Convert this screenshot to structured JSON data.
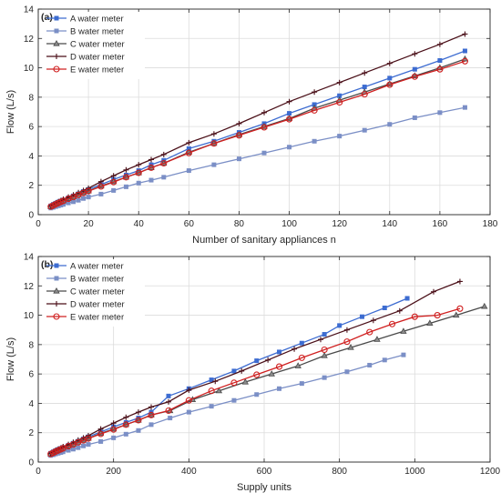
{
  "chart_data": [
    {
      "type": "line",
      "panel_label": "(a)",
      "xlabel": "Number of sanitary appliances n",
      "ylabel": "Flow (L/s)",
      "xlim": [
        0,
        180
      ],
      "ylim": [
        0,
        14
      ],
      "xticks": [
        0,
        20,
        40,
        60,
        80,
        100,
        120,
        140,
        160,
        180
      ],
      "yticks": [
        0,
        2,
        4,
        6,
        8,
        10,
        12,
        14
      ],
      "legend_position": "top-left",
      "grid": true,
      "series": [
        {
          "name": "A water meter",
          "color": "#3D6CD1",
          "marker": "square",
          "x": [
            5,
            6,
            7,
            8,
            9,
            10,
            12,
            14,
            16,
            18,
            20,
            25,
            30,
            35,
            40,
            45,
            50,
            60,
            70,
            80,
            90,
            100,
            110,
            120,
            130,
            140,
            150,
            160,
            170
          ],
          "y": [
            0.6,
            0.7,
            0.78,
            0.86,
            0.93,
            1.0,
            1.15,
            1.28,
            1.42,
            1.58,
            1.72,
            2.05,
            2.4,
            2.7,
            3.0,
            3.4,
            3.7,
            4.5,
            5.0,
            5.6,
            6.2,
            6.9,
            7.5,
            8.1,
            8.7,
            9.3,
            9.9,
            10.5,
            11.15
          ]
        },
        {
          "name": "B water meter",
          "color": "#7B8FC6",
          "marker": "square",
          "x": [
            5,
            6,
            7,
            8,
            9,
            10,
            12,
            14,
            16,
            18,
            20,
            25,
            30,
            35,
            40,
            45,
            50,
            60,
            70,
            80,
            90,
            100,
            110,
            120,
            130,
            140,
            150,
            160,
            170
          ],
          "y": [
            0.45,
            0.5,
            0.55,
            0.6,
            0.65,
            0.7,
            0.8,
            0.88,
            0.98,
            1.1,
            1.2,
            1.4,
            1.65,
            1.9,
            2.15,
            2.35,
            2.55,
            3.0,
            3.4,
            3.8,
            4.2,
            4.6,
            5.0,
            5.35,
            5.75,
            6.15,
            6.6,
            6.95,
            7.3
          ]
        },
        {
          "name": "C water meter",
          "color": "#4A4A4A",
          "marker": "triangle",
          "x": [
            5,
            6,
            7,
            8,
            9,
            10,
            12,
            14,
            16,
            18,
            20,
            25,
            30,
            35,
            40,
            45,
            50,
            60,
            70,
            80,
            90,
            100,
            110,
            120,
            130,
            140,
            150,
            160,
            170
          ],
          "y": [
            0.55,
            0.64,
            0.72,
            0.8,
            0.88,
            0.95,
            1.1,
            1.22,
            1.36,
            1.5,
            1.62,
            1.95,
            2.25,
            2.55,
            2.85,
            3.2,
            3.5,
            4.25,
            4.85,
            5.45,
            6.0,
            6.55,
            7.25,
            7.8,
            8.35,
            8.9,
            9.45,
            10.0,
            10.6
          ]
        },
        {
          "name": "D water meter",
          "color": "#4A0F18",
          "marker": "plus",
          "x": [
            5,
            6,
            7,
            8,
            9,
            10,
            12,
            14,
            16,
            18,
            20,
            25,
            30,
            35,
            40,
            45,
            50,
            60,
            70,
            80,
            90,
            100,
            110,
            120,
            130,
            140,
            150,
            160,
            170
          ],
          "y": [
            0.6,
            0.7,
            0.8,
            0.88,
            0.96,
            1.05,
            1.2,
            1.35,
            1.5,
            1.65,
            1.8,
            2.25,
            2.65,
            3.05,
            3.4,
            3.75,
            4.1,
            4.9,
            5.5,
            6.2,
            6.95,
            7.7,
            8.35,
            9.0,
            9.65,
            10.3,
            10.95,
            11.6,
            12.3
          ]
        },
        {
          "name": "E water meter",
          "color": "#D02020",
          "marker": "circle",
          "x": [
            5,
            6,
            7,
            8,
            9,
            10,
            12,
            14,
            16,
            18,
            20,
            25,
            30,
            35,
            40,
            45,
            50,
            60,
            70,
            80,
            90,
            100,
            110,
            120,
            130,
            140,
            150,
            160,
            170
          ],
          "y": [
            0.55,
            0.63,
            0.71,
            0.79,
            0.87,
            0.94,
            1.08,
            1.2,
            1.34,
            1.48,
            1.6,
            1.92,
            2.22,
            2.55,
            2.85,
            3.2,
            3.5,
            4.2,
            4.85,
            5.4,
            5.95,
            6.5,
            7.1,
            7.65,
            8.2,
            8.85,
            9.4,
            9.9,
            10.45
          ]
        }
      ]
    },
    {
      "type": "line",
      "panel_label": "(b)",
      "xlabel": "Supply units",
      "ylabel": "Flow (L/s)",
      "xlim": [
        0,
        1200
      ],
      "ylim": [
        0,
        14
      ],
      "xticks": [
        0,
        200,
        400,
        600,
        800,
        1000,
        1200
      ],
      "yticks": [
        0,
        2,
        4,
        6,
        8,
        10,
        12,
        14
      ],
      "legend_position": "top-left",
      "grid": true,
      "series": [
        {
          "name": "A water meter",
          "color": "#3D6CD1",
          "marker": "square",
          "x": [
            33,
            40,
            46,
            53,
            60,
            66,
            80,
            93,
            106,
            120,
            133,
            166,
            200,
            233,
            266,
            300,
            346,
            400,
            460,
            520,
            580,
            640,
            700,
            760,
            800,
            860,
            920,
            980
          ],
          "y": [
            0.6,
            0.7,
            0.78,
            0.86,
            0.93,
            1.0,
            1.15,
            1.28,
            1.42,
            1.58,
            1.72,
            2.05,
            2.4,
            2.7,
            3.0,
            3.4,
            4.5,
            5.0,
            5.6,
            6.2,
            6.9,
            7.5,
            8.1,
            8.7,
            9.3,
            9.9,
            10.5,
            11.15
          ]
        },
        {
          "name": "B water meter",
          "color": "#7B8FC6",
          "marker": "square",
          "x": [
            33,
            40,
            46,
            53,
            60,
            66,
            80,
            93,
            106,
            120,
            133,
            166,
            200,
            233,
            266,
            300,
            350,
            400,
            460,
            520,
            580,
            640,
            700,
            760,
            820,
            880,
            920,
            970
          ],
          "y": [
            0.45,
            0.5,
            0.55,
            0.6,
            0.65,
            0.7,
            0.8,
            0.88,
            0.98,
            1.1,
            1.2,
            1.4,
            1.65,
            1.9,
            2.15,
            2.55,
            3.0,
            3.4,
            3.8,
            4.2,
            4.6,
            5.0,
            5.35,
            5.75,
            6.15,
            6.6,
            6.95,
            7.3
          ]
        },
        {
          "name": "C water meter",
          "color": "#4A4A4A",
          "marker": "triangle",
          "x": [
            33,
            40,
            46,
            53,
            60,
            66,
            80,
            93,
            106,
            120,
            133,
            166,
            200,
            233,
            266,
            300,
            350,
            410,
            480,
            550,
            620,
            690,
            760,
            830,
            900,
            970,
            1040,
            1110,
            1185
          ],
          "y": [
            0.55,
            0.64,
            0.72,
            0.8,
            0.88,
            0.95,
            1.1,
            1.22,
            1.36,
            1.5,
            1.62,
            1.95,
            2.25,
            2.55,
            2.85,
            3.2,
            3.5,
            4.25,
            4.85,
            5.45,
            6.0,
            6.55,
            7.25,
            7.8,
            8.35,
            8.9,
            9.45,
            10.0,
            10.6
          ]
        },
        {
          "name": "D water meter",
          "color": "#4A0F18",
          "marker": "plus",
          "x": [
            33,
            40,
            46,
            53,
            60,
            66,
            80,
            93,
            106,
            120,
            133,
            166,
            200,
            233,
            266,
            300,
            346,
            400,
            470,
            540,
            610,
            680,
            750,
            820,
            890,
            960,
            1050,
            1120
          ],
          "y": [
            0.6,
            0.7,
            0.8,
            0.88,
            0.96,
            1.05,
            1.2,
            1.35,
            1.5,
            1.65,
            1.8,
            2.25,
            2.65,
            3.05,
            3.4,
            3.75,
            4.1,
            4.9,
            5.5,
            6.2,
            6.95,
            7.7,
            8.35,
            9.0,
            9.65,
            10.3,
            11.6,
            12.3
          ]
        },
        {
          "name": "E water meter",
          "color": "#D02020",
          "marker": "circle",
          "x": [
            33,
            40,
            46,
            53,
            60,
            66,
            80,
            93,
            106,
            120,
            133,
            166,
            200,
            233,
            266,
            300,
            346,
            400,
            460,
            520,
            580,
            640,
            700,
            760,
            820,
            880,
            940,
            1000,
            1060,
            1120
          ],
          "y": [
            0.55,
            0.63,
            0.71,
            0.79,
            0.87,
            0.94,
            1.08,
            1.2,
            1.34,
            1.48,
            1.6,
            1.92,
            2.22,
            2.55,
            2.85,
            3.2,
            3.5,
            4.2,
            4.85,
            5.4,
            5.95,
            6.5,
            7.1,
            7.65,
            8.2,
            8.85,
            9.4,
            9.9,
            10.0,
            10.45
          ]
        }
      ]
    }
  ]
}
